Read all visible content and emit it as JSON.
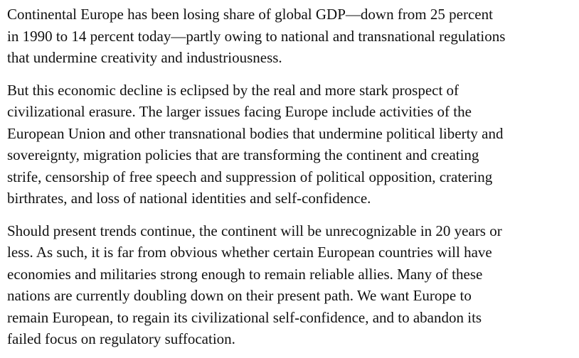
{
  "paragraphs": [
    {
      "lines": [
        "Continental Europe has been losing share of global GDP—down from 25 percent",
        "in 1990 to 14 percent today—partly owing to national and transnational regulations",
        "that undermine creativity and industriousness."
      ]
    },
    {
      "lines": [
        "But this economic decline is eclipsed by the real and more stark prospect of",
        "civilizational erasure. The larger issues facing Europe include activities of the",
        "European Union and other transnational bodies that undermine political liberty and",
        "sovereignty, migration policies that are transforming the continent and creating",
        "strife, censorship of free speech and suppression of political opposition, cratering",
        "birthrates, and loss of national identities and self-confidence."
      ]
    },
    {
      "lines": [
        "Should present trends continue, the continent will be unrecognizable in 20 years or",
        "less. As such, it is far from obvious whether certain European countries will have",
        "economies and militaries strong enough to remain reliable allies. Many of these",
        "nations are currently doubling down on their present path. We want Europe to",
        "remain European, to regain its civilizational self-confidence, and to abandon its",
        "failed focus on regulatory suffocation."
      ]
    }
  ]
}
